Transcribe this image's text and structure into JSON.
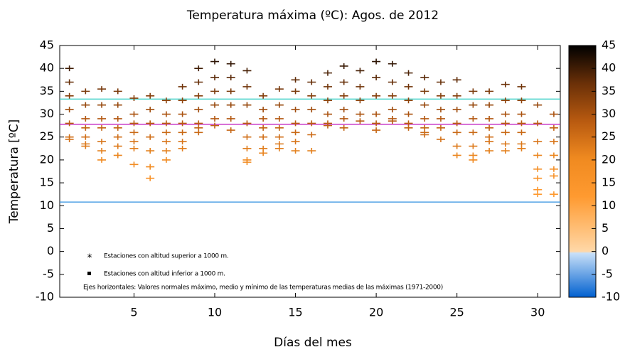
{
  "chart_data": {
    "type": "scatter",
    "title": "Temperatura máxima  (ºC): Agos.  de  2012",
    "x_label": "Días del mes",
    "y_label": "Temperatura  [ºC]",
    "x": [
      1,
      2,
      3,
      4,
      5,
      6,
      7,
      8,
      9,
      10,
      11,
      12,
      13,
      14,
      15,
      16,
      17,
      18,
      19,
      20,
      21,
      22,
      23,
      24,
      25,
      26,
      27,
      28,
      29,
      30,
      31
    ],
    "values": [
      [
        40,
        37,
        34,
        31,
        28,
        25,
        24.5
      ],
      [
        35,
        32,
        29,
        27,
        25,
        23.5,
        23
      ],
      [
        35.5,
        32,
        29,
        27,
        24,
        22,
        20
      ],
      [
        35,
        32,
        29,
        27,
        25,
        23,
        21
      ],
      [
        33.5,
        30,
        28,
        26,
        24,
        22.5,
        19
      ],
      [
        34,
        31,
        28,
        25,
        22,
        18.5,
        16
      ],
      [
        33,
        30,
        28,
        26,
        24,
        22,
        20
      ],
      [
        36,
        33,
        30,
        28,
        26,
        24,
        22.5
      ],
      [
        40,
        37,
        34,
        31,
        28,
        27,
        26
      ],
      [
        41.5,
        38,
        35,
        32,
        29,
        27.5
      ],
      [
        41,
        38,
        35,
        32,
        29,
        26.5
      ],
      [
        39.5,
        36,
        32,
        28,
        25,
        22.5,
        20,
        19.5
      ],
      [
        34,
        31,
        29,
        27,
        25,
        22.5,
        21.5
      ],
      [
        35.5,
        32,
        29,
        27,
        25,
        23.5,
        22.5
      ],
      [
        37.5,
        35,
        31,
        28,
        26,
        24,
        22
      ],
      [
        37,
        34,
        31,
        28,
        25.5,
        22
      ],
      [
        39,
        36,
        33,
        30,
        28,
        27.5
      ],
      [
        40.5,
        37,
        34,
        31,
        29,
        27
      ],
      [
        39.5,
        36,
        33,
        30,
        28.5
      ],
      [
        41.5,
        38,
        34,
        30,
        28,
        26.5
      ],
      [
        41,
        37,
        34,
        31,
        29,
        28.5
      ],
      [
        39,
        36,
        33,
        30,
        28,
        27
      ],
      [
        38,
        35,
        32,
        29,
        27,
        26,
        25.5
      ],
      [
        37,
        34,
        31,
        29,
        27,
        24.5
      ],
      [
        37.5,
        34,
        31,
        28,
        26,
        23,
        21
      ],
      [
        35,
        32,
        29,
        26,
        23,
        21,
        20
      ],
      [
        35,
        32,
        29,
        27,
        25,
        24,
        22
      ],
      [
        36.5,
        33,
        30,
        28,
        26,
        23.5,
        22
      ],
      [
        36,
        33,
        30,
        28,
        26,
        23.5,
        22.5
      ],
      [
        32,
        28,
        24,
        21,
        18,
        16,
        13.5,
        12.5
      ],
      [
        30,
        27,
        24,
        21,
        18,
        16.5,
        12.5
      ]
    ],
    "xlim": [
      0.4,
      31.4
    ],
    "xticks": [
      5,
      10,
      15,
      20,
      25,
      30
    ],
    "ylim": [
      -10,
      45
    ],
    "yticks": [
      -10,
      -5,
      0,
      5,
      10,
      15,
      20,
      25,
      30,
      35,
      40,
      45
    ],
    "reference_lines": [
      {
        "value": 33.3,
        "color": "#40d0c8"
      },
      {
        "value": 27.8,
        "color": "#c020c0"
      },
      {
        "value": 10.8,
        "color": "#3090e0"
      }
    ],
    "legend_notes": [
      "Estaciones con altitud superior a  1000  m.",
      "Estaciones con altitud inferior a  1000  m.",
      "Ejes horizontales: Valores normales máximo, medio y mínimo de las temperaturas medias de las máximas (1971-2000)"
    ],
    "colorbar": {
      "lim": [
        -10,
        45
      ],
      "ticks": [
        -10,
        -5,
        0,
        5,
        10,
        15,
        20,
        25,
        30,
        35,
        40,
        45
      ]
    }
  }
}
